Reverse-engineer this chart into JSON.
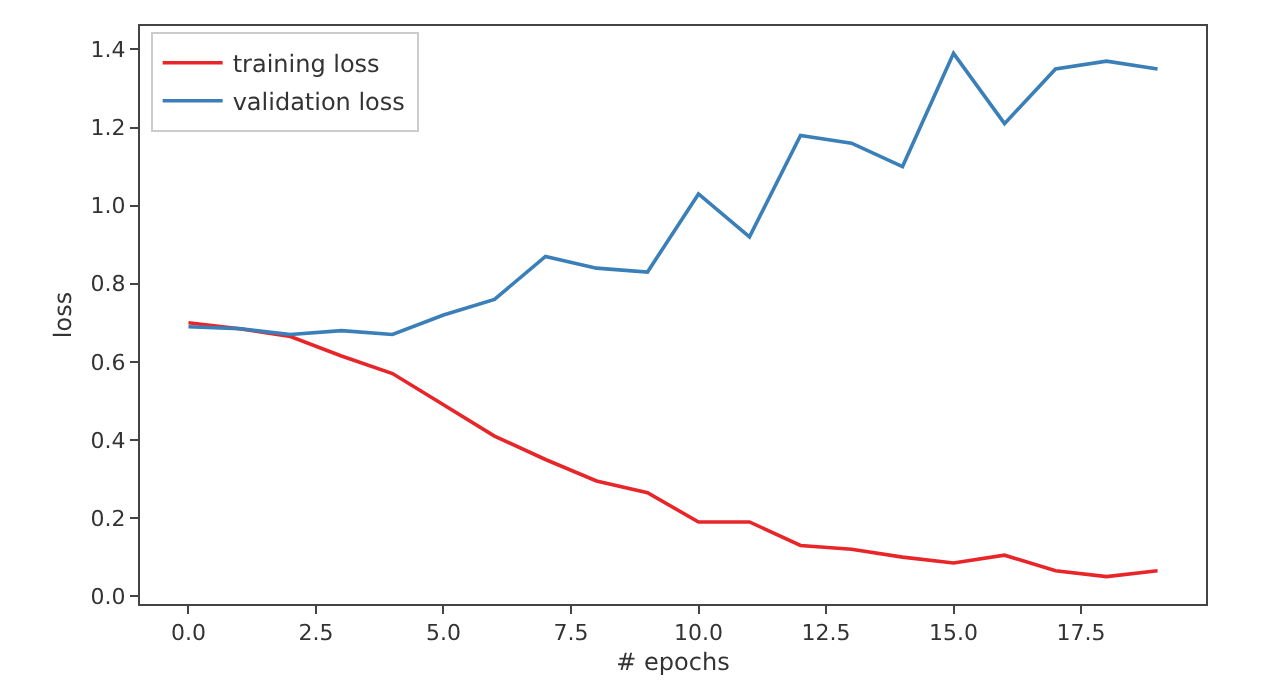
{
  "chart_data": {
    "type": "line",
    "xlabel": "# epochs",
    "ylabel": "loss",
    "x": [
      0,
      1,
      2,
      3,
      4,
      5,
      6,
      7,
      8,
      9,
      10,
      11,
      12,
      13,
      14,
      15,
      16,
      17,
      18,
      19
    ],
    "series": [
      {
        "name": "training loss",
        "color": "#e8262a",
        "values": [
          0.7,
          0.685,
          0.665,
          0.615,
          0.57,
          0.49,
          0.41,
          0.35,
          0.295,
          0.265,
          0.19,
          0.19,
          0.13,
          0.12,
          0.1,
          0.085,
          0.105,
          0.065,
          0.05,
          0.065
        ]
      },
      {
        "name": "validation loss",
        "color": "#3a7fb8",
        "values": [
          0.69,
          0.685,
          0.67,
          0.68,
          0.67,
          0.72,
          0.76,
          0.87,
          0.84,
          0.83,
          1.03,
          0.92,
          1.18,
          1.16,
          1.1,
          1.39,
          1.21,
          1.35,
          1.37,
          1.35
        ]
      }
    ],
    "xlim": [
      -0.95,
      19.95
    ],
    "xticks": [
      {
        "value": 0,
        "label": "0.0"
      },
      {
        "value": 2.5,
        "label": "2.5"
      },
      {
        "value": 5,
        "label": "5.0"
      },
      {
        "value": 7.5,
        "label": "7.5"
      },
      {
        "value": 10,
        "label": "10.0"
      },
      {
        "value": 12.5,
        "label": "12.5"
      },
      {
        "value": 15,
        "label": "15.0"
      },
      {
        "value": 17.5,
        "label": "17.5"
      }
    ],
    "ylim": [
      -0.02,
      1.46
    ],
    "yticks": [
      {
        "value": 0,
        "label": "0.0"
      },
      {
        "value": 0.2,
        "label": "0.2"
      },
      {
        "value": 0.4,
        "label": "0.4"
      },
      {
        "value": 0.6,
        "label": "0.6"
      },
      {
        "value": 0.8,
        "label": "0.8"
      },
      {
        "value": 1.0,
        "label": "1.0"
      },
      {
        "value": 1.2,
        "label": "1.2"
      },
      {
        "value": 1.4,
        "label": "1.4"
      }
    ],
    "legend": "top left",
    "marker": "none",
    "line_style": "solid"
  }
}
